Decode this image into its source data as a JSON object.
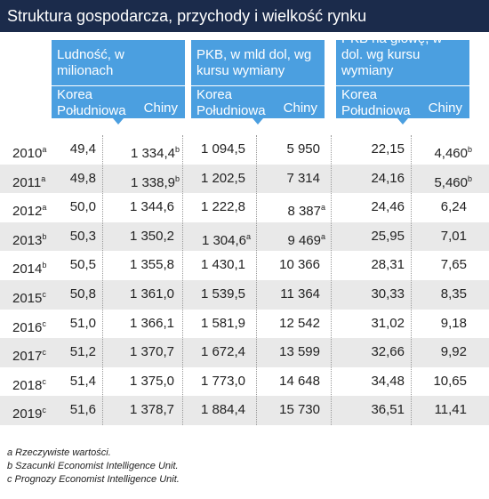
{
  "header": {
    "title": "Struktura gospodarcza, przychody i wielkość rynku"
  },
  "table": {
    "groups": [
      {
        "title": "Ludność, w milionach",
        "sub": [
          "Korea Południowa",
          "Chiny"
        ]
      },
      {
        "title": "PKB, w mld dol, wg kursu wymiany",
        "sub": [
          "Korea Południowa",
          "Chiny"
        ]
      },
      {
        "title": "PKB na głowę, w dol. wg kursu wymiany",
        "sub": [
          "Korea Południowa",
          "Chiny"
        ]
      }
    ],
    "rows": [
      {
        "year": "2010",
        "note": "a",
        "cells": [
          {
            "v": "49,4"
          },
          {
            "v": "1 334,4",
            "sup": "b"
          },
          {
            "v": "1 094,5"
          },
          {
            "v": "5 950"
          },
          {
            "v": "22,15"
          },
          {
            "v": "4,460",
            "sup": "b"
          }
        ]
      },
      {
        "year": "2011",
        "note": "a",
        "cells": [
          {
            "v": "49,8"
          },
          {
            "v": "1 338,9",
            "sup": "b"
          },
          {
            "v": "1 202,5"
          },
          {
            "v": "7 314"
          },
          {
            "v": "24,16"
          },
          {
            "v": "5,460",
            "sup": "b"
          }
        ]
      },
      {
        "year": "2012",
        "note": "a",
        "cells": [
          {
            "v": "50,0"
          },
          {
            "v": "1 344,6"
          },
          {
            "v": "1 222,8"
          },
          {
            "v": "8 387",
            "sup": "a"
          },
          {
            "v": "24,46"
          },
          {
            "v": "6,24"
          }
        ]
      },
      {
        "year": "2013",
        "note": "b",
        "cells": [
          {
            "v": "50,3"
          },
          {
            "v": "1 350,2"
          },
          {
            "v": "1 304,6",
            "sup": "a"
          },
          {
            "v": "9 469",
            "sup": "a"
          },
          {
            "v": "25,95"
          },
          {
            "v": "7,01"
          }
        ]
      },
      {
        "year": "2014",
        "note": "b",
        "cells": [
          {
            "v": "50,5"
          },
          {
            "v": "1 355,8"
          },
          {
            "v": "1 430,1"
          },
          {
            "v": "10 366"
          },
          {
            "v": "28,31"
          },
          {
            "v": "7,65"
          }
        ]
      },
      {
        "year": "2015",
        "note": "c",
        "cells": [
          {
            "v": "50,8"
          },
          {
            "v": "1 361,0"
          },
          {
            "v": "1 539,5"
          },
          {
            "v": "11 364"
          },
          {
            "v": "30,33"
          },
          {
            "v": "8,35"
          }
        ]
      },
      {
        "year": "2016",
        "note": "c",
        "cells": [
          {
            "v": "51,0"
          },
          {
            "v": "1 366,1"
          },
          {
            "v": "1 581,9"
          },
          {
            "v": "12 542"
          },
          {
            "v": "31,02"
          },
          {
            "v": "9,18"
          }
        ]
      },
      {
        "year": "2017",
        "note": "c",
        "cells": [
          {
            "v": "51,2"
          },
          {
            "v": "1 370,7"
          },
          {
            "v": "1 672,4"
          },
          {
            "v": "13 599"
          },
          {
            "v": "32,66"
          },
          {
            "v": "9,92"
          }
        ]
      },
      {
        "year": "2018",
        "note": "c",
        "cells": [
          {
            "v": "51,4"
          },
          {
            "v": "1 375,0"
          },
          {
            "v": "1 773,0"
          },
          {
            "v": "14 648"
          },
          {
            "v": "34,48"
          },
          {
            "v": "10,65"
          }
        ]
      },
      {
        "year": "2019",
        "note": "c",
        "cells": [
          {
            "v": "51,6"
          },
          {
            "v": "1 378,7"
          },
          {
            "v": "1 884,4"
          },
          {
            "v": "15 730"
          },
          {
            "v": "36,51"
          },
          {
            "v": "11,41"
          }
        ]
      }
    ]
  },
  "footnotes": [
    "a Rzeczywiste wartości.",
    "b Szacunki Economist Intelligence Unit.",
    "c Prognozy Economist Intelligence Unit."
  ]
}
